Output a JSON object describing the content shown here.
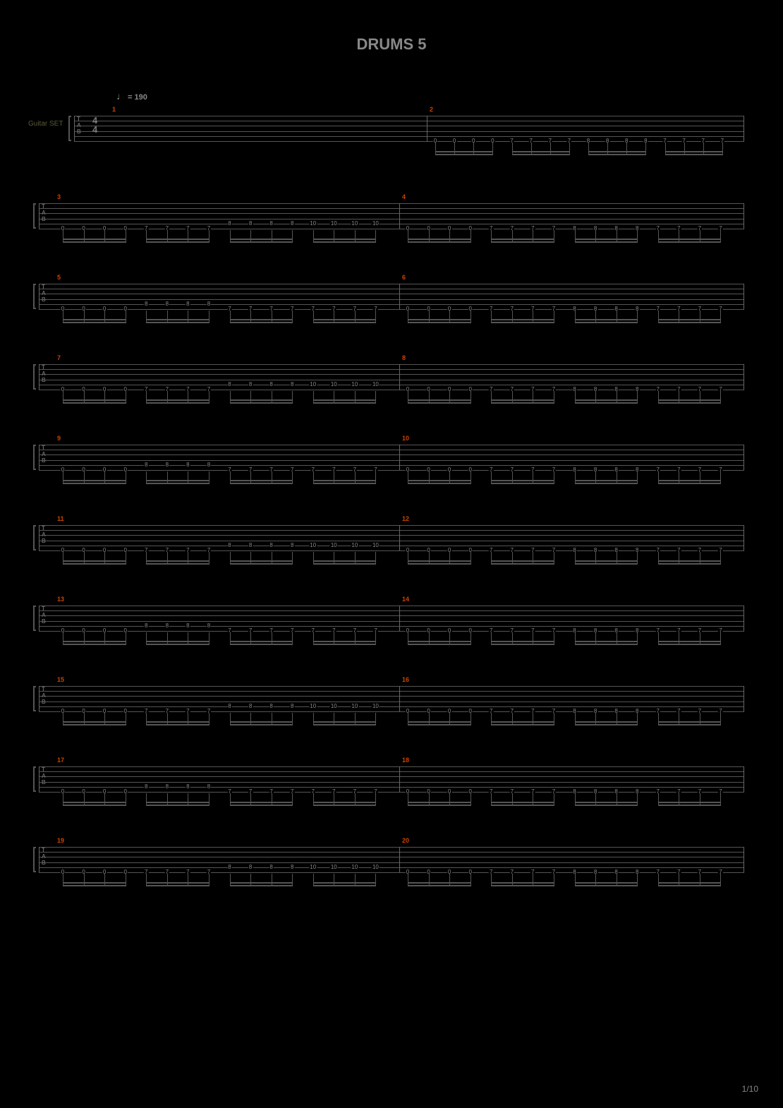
{
  "title": "DRUMS 5",
  "tempo": "= 190",
  "instrument": "Guitar SET",
  "page": "1/10",
  "colors": {
    "bg": "#000000",
    "title": "#888888",
    "staff_line": "#555555",
    "measure_num": "#cc4400",
    "note": "#888888",
    "instrument": "#5a5a3a"
  },
  "tab_lines": 6,
  "time_sig_top": "4",
  "time_sig_bot": "4",
  "systems": [
    {
      "first": true,
      "measures": [
        {
          "num": 1,
          "notes": []
        },
        {
          "num": 2,
          "notes": [
            [
              0,
              0,
              0,
              0,
              7,
              7,
              7,
              7,
              8,
              8,
              8,
              8,
              7,
              7,
              7,
              7
            ],
            [
              5,
              5,
              5,
              5,
              5,
              5,
              5,
              5,
              5,
              5,
              5,
              5,
              5,
              5,
              5,
              5
            ]
          ]
        }
      ]
    },
    {
      "measures": [
        {
          "num": 3,
          "notes": [
            [
              0,
              0,
              0,
              0,
              7,
              7,
              7,
              7,
              8,
              8,
              8,
              8,
              10,
              10,
              10,
              10
            ],
            [
              5,
              5,
              5,
              5,
              5,
              5,
              5,
              5,
              4,
              4,
              4,
              4,
              4,
              4,
              4,
              4
            ]
          ]
        },
        {
          "num": 4,
          "notes": [
            [
              0,
              0,
              0,
              0,
              7,
              7,
              7,
              7,
              8,
              8,
              8,
              8,
              7,
              7,
              7,
              7
            ],
            [
              5,
              5,
              5,
              5,
              5,
              5,
              5,
              5,
              5,
              5,
              5,
              5,
              5,
              5,
              5,
              5
            ]
          ]
        }
      ]
    },
    {
      "measures": [
        {
          "num": 5,
          "notes": [
            [
              0,
              0,
              0,
              0,
              8,
              8,
              8,
              8,
              7,
              7,
              7,
              7,
              7,
              7,
              7,
              7
            ],
            [
              5,
              5,
              5,
              5,
              4,
              4,
              4,
              4,
              5,
              5,
              5,
              5,
              5,
              5,
              5,
              5
            ]
          ]
        },
        {
          "num": 6,
          "notes": [
            [
              0,
              0,
              0,
              0,
              7,
              7,
              7,
              7,
              8,
              8,
              8,
              8,
              7,
              7,
              7,
              7
            ],
            [
              5,
              5,
              5,
              5,
              5,
              5,
              5,
              5,
              5,
              5,
              5,
              5,
              5,
              5,
              5,
              5
            ]
          ]
        }
      ]
    },
    {
      "measures": [
        {
          "num": 7,
          "notes": [
            [
              0,
              0,
              0,
              0,
              7,
              7,
              7,
              7,
              8,
              8,
              8,
              8,
              10,
              10,
              10,
              10
            ],
            [
              5,
              5,
              5,
              5,
              5,
              5,
              5,
              5,
              4,
              4,
              4,
              4,
              4,
              4,
              4,
              4
            ]
          ]
        },
        {
          "num": 8,
          "notes": [
            [
              0,
              0,
              0,
              0,
              7,
              7,
              7,
              7,
              8,
              8,
              8,
              8,
              7,
              7,
              7,
              7
            ],
            [
              5,
              5,
              5,
              5,
              5,
              5,
              5,
              5,
              5,
              5,
              5,
              5,
              5,
              5,
              5,
              5
            ]
          ]
        }
      ]
    },
    {
      "measures": [
        {
          "num": 9,
          "notes": [
            [
              0,
              0,
              0,
              0,
              8,
              8,
              8,
              8,
              7,
              7,
              7,
              7,
              7,
              7,
              7,
              7
            ],
            [
              5,
              5,
              5,
              5,
              4,
              4,
              4,
              4,
              5,
              5,
              5,
              5,
              5,
              5,
              5,
              5
            ]
          ]
        },
        {
          "num": 10,
          "notes": [
            [
              0,
              0,
              0,
              0,
              7,
              7,
              7,
              7,
              8,
              8,
              8,
              8,
              7,
              7,
              7,
              7
            ],
            [
              5,
              5,
              5,
              5,
              5,
              5,
              5,
              5,
              5,
              5,
              5,
              5,
              5,
              5,
              5,
              5
            ]
          ]
        }
      ]
    },
    {
      "measures": [
        {
          "num": 11,
          "notes": [
            [
              0,
              0,
              0,
              0,
              7,
              7,
              7,
              7,
              8,
              8,
              8,
              8,
              10,
              10,
              10,
              10
            ],
            [
              5,
              5,
              5,
              5,
              5,
              5,
              5,
              5,
              4,
              4,
              4,
              4,
              4,
              4,
              4,
              4
            ]
          ]
        },
        {
          "num": 12,
          "notes": [
            [
              0,
              0,
              0,
              0,
              7,
              7,
              7,
              7,
              8,
              8,
              8,
              8,
              7,
              7,
              7,
              7
            ],
            [
              5,
              5,
              5,
              5,
              5,
              5,
              5,
              5,
              5,
              5,
              5,
              5,
              5,
              5,
              5,
              5
            ]
          ]
        }
      ]
    },
    {
      "measures": [
        {
          "num": 13,
          "notes": [
            [
              0,
              0,
              0,
              0,
              8,
              8,
              8,
              8,
              7,
              7,
              7,
              7,
              7,
              7,
              7,
              7
            ],
            [
              5,
              5,
              5,
              5,
              4,
              4,
              4,
              4,
              5,
              5,
              5,
              5,
              5,
              5,
              5,
              5
            ]
          ]
        },
        {
          "num": 14,
          "notes": [
            [
              0,
              0,
              0,
              0,
              7,
              7,
              7,
              7,
              8,
              8,
              8,
              8,
              7,
              7,
              7,
              7
            ],
            [
              5,
              5,
              5,
              5,
              5,
              5,
              5,
              5,
              5,
              5,
              5,
              5,
              5,
              5,
              5,
              5
            ]
          ]
        }
      ]
    },
    {
      "measures": [
        {
          "num": 15,
          "notes": [
            [
              0,
              0,
              0,
              0,
              7,
              7,
              7,
              7,
              8,
              8,
              8,
              8,
              10,
              10,
              10,
              10
            ],
            [
              5,
              5,
              5,
              5,
              5,
              5,
              5,
              5,
              4,
              4,
              4,
              4,
              4,
              4,
              4,
              4
            ]
          ]
        },
        {
          "num": 16,
          "notes": [
            [
              0,
              0,
              0,
              0,
              7,
              7,
              7,
              7,
              8,
              8,
              8,
              8,
              7,
              7,
              7,
              7
            ],
            [
              5,
              5,
              5,
              5,
              5,
              5,
              5,
              5,
              5,
              5,
              5,
              5,
              5,
              5,
              5,
              5
            ]
          ]
        }
      ]
    },
    {
      "measures": [
        {
          "num": 17,
          "notes": [
            [
              0,
              0,
              0,
              0,
              8,
              8,
              8,
              8,
              7,
              7,
              7,
              7,
              7,
              7,
              7,
              7
            ],
            [
              5,
              5,
              5,
              5,
              4,
              4,
              4,
              4,
              5,
              5,
              5,
              5,
              5,
              5,
              5,
              5
            ]
          ]
        },
        {
          "num": 18,
          "notes": [
            [
              0,
              0,
              0,
              0,
              7,
              7,
              7,
              7,
              8,
              8,
              8,
              8,
              7,
              7,
              7,
              7
            ],
            [
              5,
              5,
              5,
              5,
              5,
              5,
              5,
              5,
              5,
              5,
              5,
              5,
              5,
              5,
              5,
              5
            ]
          ]
        }
      ]
    },
    {
      "measures": [
        {
          "num": 19,
          "notes": [
            [
              0,
              0,
              0,
              0,
              7,
              7,
              7,
              7,
              8,
              8,
              8,
              8,
              10,
              10,
              10,
              10
            ],
            [
              5,
              5,
              5,
              5,
              5,
              5,
              5,
              5,
              4,
              4,
              4,
              4,
              4,
              4,
              4,
              4
            ]
          ]
        },
        {
          "num": 20,
          "notes": [
            [
              0,
              0,
              0,
              0,
              7,
              7,
              7,
              7,
              8,
              8,
              8,
              8,
              7,
              7,
              7,
              7
            ],
            [
              5,
              5,
              5,
              5,
              5,
              5,
              5,
              5,
              5,
              5,
              5,
              5,
              5,
              5,
              5,
              5
            ]
          ]
        }
      ]
    }
  ]
}
